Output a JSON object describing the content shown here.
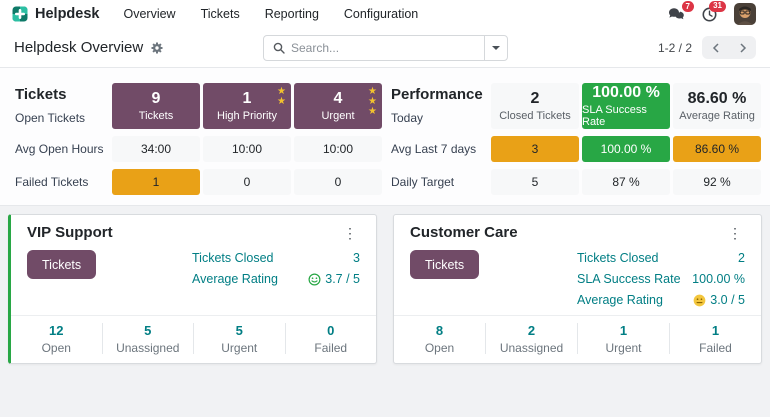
{
  "nav": {
    "app_name": "Helpdesk",
    "items": [
      {
        "label": "Overview"
      },
      {
        "label": "Tickets"
      },
      {
        "label": "Reporting"
      },
      {
        "label": "Configuration"
      }
    ],
    "messages_badge": "7",
    "activities_badge": "31"
  },
  "control_panel": {
    "title": "Helpdesk Overview",
    "search_placeholder": "Search...",
    "pager_range": "1-2 / 2"
  },
  "banner": {
    "tickets": {
      "title": "Tickets",
      "row1_label": "Open Tickets",
      "row2_label": "Avg Open Hours",
      "row3_label": "Failed Tickets",
      "cards": [
        {
          "value": "9",
          "label": "Tickets",
          "stars": 0
        },
        {
          "value": "1",
          "label": "High Priority",
          "stars": 2
        },
        {
          "value": "4",
          "label": "Urgent",
          "stars": 3
        }
      ],
      "row2": [
        "34:00",
        "10:00",
        "10:00"
      ],
      "row3": [
        "1",
        "0",
        "0"
      ]
    },
    "performance": {
      "title": "Performance",
      "row1_label": "Today",
      "row2_label": "Avg Last 7 days",
      "row3_label": "Daily Target",
      "cards": [
        {
          "value": "2",
          "label": "Closed Tickets"
        },
        {
          "value": "100.00 %",
          "label": "SLA Success Rate"
        },
        {
          "value": "86.60 %",
          "label": "Average Rating"
        }
      ],
      "row2": [
        "3",
        "100.00 %",
        "86.60 %"
      ],
      "row3": [
        "5",
        "87 %",
        "92 %"
      ]
    }
  },
  "teams": [
    {
      "name": "VIP Support",
      "button_label": "Tickets",
      "kpis": [
        {
          "label": "Tickets Closed",
          "value": "3"
        },
        {
          "label": "Average Rating",
          "value": "3.7 / 5",
          "smiley": "happy-green"
        }
      ],
      "stats": [
        {
          "value": "12",
          "label": "Open"
        },
        {
          "value": "5",
          "label": "Unassigned"
        },
        {
          "value": "5",
          "label": "Urgent"
        },
        {
          "value": "0",
          "label": "Failed"
        }
      ]
    },
    {
      "name": "Customer Care",
      "button_label": "Tickets",
      "kpis": [
        {
          "label": "Tickets Closed",
          "value": "2"
        },
        {
          "label": "SLA Success Rate",
          "value": "100.00 %"
        },
        {
          "label": "Average Rating",
          "value": "3.0 / 5",
          "smiley": "neutral-yellow"
        }
      ],
      "stats": [
        {
          "value": "8",
          "label": "Open"
        },
        {
          "value": "2",
          "label": "Unassigned"
        },
        {
          "value": "1",
          "label": "Urgent"
        },
        {
          "value": "1",
          "label": "Failed"
        }
      ]
    }
  ],
  "colors": {
    "accent_purple": "#714B67",
    "success_green": "#28a745",
    "warning_amber": "#e9a117",
    "teal_text": "#017e84",
    "badge_red": "#dc3545",
    "star_gold": "#f2c12e"
  }
}
